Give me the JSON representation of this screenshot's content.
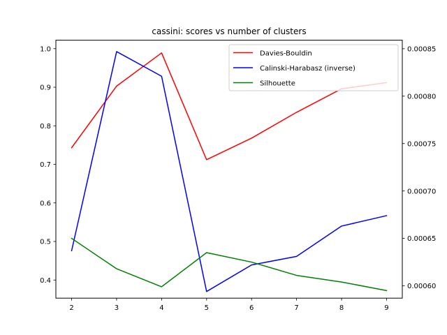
{
  "chart_data": {
    "type": "line",
    "title": "cassini: scores vs number of clusters",
    "xlabel": "",
    "ylabel": "",
    "ylabel_right": "",
    "x": [
      2,
      3,
      4,
      5,
      6,
      7,
      8,
      9
    ],
    "xlim": [
      1.65,
      9.35
    ],
    "x_ticks": [
      "2",
      "3",
      "4",
      "5",
      "6",
      "7",
      "8",
      "9"
    ],
    "ylim": [
      0.353,
      1.022
    ],
    "y_ticks": [
      "0.4",
      "0.5",
      "0.6",
      "0.7",
      "0.8",
      "0.9",
      "1.0"
    ],
    "ylim_right": [
      0.000587,
      0.000859
    ],
    "y_ticks_right": [
      "0.00060",
      "0.00065",
      "0.00070",
      "0.00075",
      "0.00080",
      "0.00085"
    ],
    "grid": false,
    "legend_position": "top-right",
    "series": [
      {
        "name": "Davies-Bouldin",
        "axis": "left",
        "color": "#ff0000",
        "values": [
          0.743,
          0.903,
          0.989,
          0.712,
          0.768,
          0.835,
          0.896,
          0.912
        ]
      },
      {
        "name": "Calinski-Harabasz (inverse)",
        "axis": "right",
        "color": "#0000ff",
        "values": [
          0.000637,
          0.000847,
          0.000821,
          0.000594,
          0.000622,
          0.000631,
          0.000663,
          0.000674
        ]
      },
      {
        "name": "Silhouette",
        "axis": "right",
        "color": "#008000",
        "values": [
          0.00065,
          0.000618,
          0.000599,
          0.000635,
          0.000625,
          0.000611,
          0.000604,
          0.000595
        ]
      }
    ]
  }
}
